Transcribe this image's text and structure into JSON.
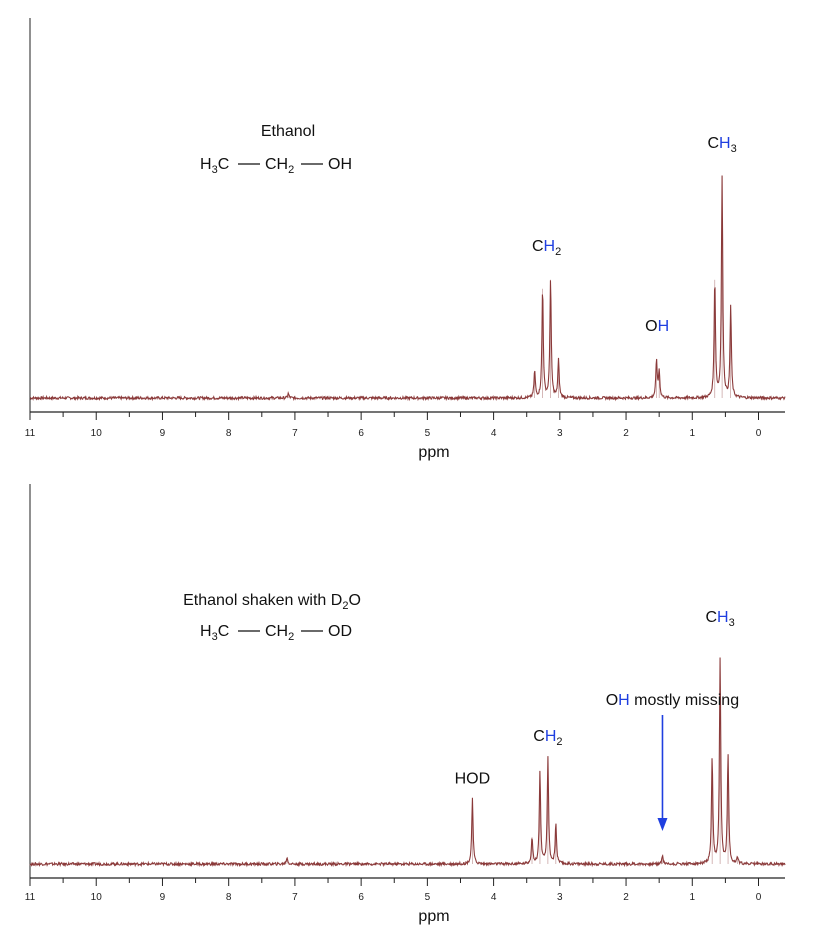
{
  "chart_data": [
    {
      "type": "line",
      "title": "",
      "xlabel": "ppm",
      "ylabel": "",
      "xlim": [
        11,
        -0.4
      ],
      "ylim": [
        0,
        1
      ],
      "x_ticks": [
        "11",
        "10",
        "9",
        "8",
        "7",
        "6",
        "5",
        "4",
        "3",
        "2",
        "1",
        "0"
      ],
      "grid": false,
      "structure": {
        "name": "Ethanol",
        "formula": {
          "a": "H",
          "a_sub": "3",
          "b": "C",
          "c": "CH",
          "c_sub": "2",
          "d": "OH"
        }
      },
      "peaks": [
        {
          "ppm": 3.38,
          "height": 0.12
        },
        {
          "ppm": 3.26,
          "height": 0.49
        },
        {
          "ppm": 3.14,
          "height": 0.53
        },
        {
          "ppm": 3.02,
          "height": 0.17
        },
        {
          "ppm": 1.54,
          "height": 0.17
        },
        {
          "ppm": 1.5,
          "height": 0.12
        },
        {
          "ppm": 0.66,
          "height": 0.53
        },
        {
          "ppm": 0.55,
          "height": 0.99
        },
        {
          "ppm": 0.42,
          "height": 0.41
        },
        {
          "ppm": 7.1,
          "height": 0.02
        }
      ],
      "annotations": [
        {
          "text": "CH",
          "highlight": "H",
          "sub": "2",
          "ppm": 3.2,
          "height": 0.66
        },
        {
          "text": "OH",
          "highlight": "H",
          "sub": "",
          "ppm": 1.53,
          "height": 0.3
        },
        {
          "text": "CH",
          "highlight": "H",
          "sub": "3",
          "ppm": 0.55,
          "height": 1.12
        }
      ]
    },
    {
      "type": "line",
      "title": "",
      "xlabel": "ppm",
      "ylabel": "",
      "xlim": [
        11,
        -0.4
      ],
      "ylim": [
        0,
        1
      ],
      "x_ticks": [
        "11",
        "10",
        "9",
        "8",
        "7",
        "6",
        "5",
        "4",
        "3",
        "2",
        "1",
        "0"
      ],
      "grid": false,
      "structure": {
        "name_pre": "Ethanol shaken with D",
        "name_sub": "2",
        "name_post": "O",
        "formula": {
          "a": "H",
          "a_sub": "3",
          "b": "C",
          "c": "CH",
          "c_sub": "2",
          "d": "OD"
        }
      },
      "peaks": [
        {
          "ppm": 4.32,
          "height": 0.29
        },
        {
          "ppm": 3.42,
          "height": 0.12
        },
        {
          "ppm": 3.3,
          "height": 0.41
        },
        {
          "ppm": 3.18,
          "height": 0.47
        },
        {
          "ppm": 3.06,
          "height": 0.18
        },
        {
          "ppm": 1.45,
          "height": 0.04
        },
        {
          "ppm": 0.7,
          "height": 0.47
        },
        {
          "ppm": 0.58,
          "height": 0.91
        },
        {
          "ppm": 0.46,
          "height": 0.49
        },
        {
          "ppm": 0.32,
          "height": 0.03
        },
        {
          "ppm": 7.12,
          "height": 0.03
        }
      ],
      "annotations": [
        {
          "text": "HOD",
          "highlight": "",
          "sub": "",
          "ppm": 4.32,
          "height": 0.36
        },
        {
          "text": "CH",
          "highlight": "H",
          "sub": "2",
          "ppm": 3.18,
          "height": 0.55
        },
        {
          "text": "CH",
          "highlight": "H",
          "sub": "3",
          "ppm": 0.58,
          "height": 1.08
        }
      ],
      "callout": {
        "prefix": "O",
        "highlight": "H",
        "suffix": " mostly missing",
        "arrow_ppm": 1.45,
        "color": "#1f3fe0"
      }
    }
  ],
  "colors": {
    "trace": "#8b3a3a",
    "axis": "#222222",
    "highlight": "#1f3fe0"
  }
}
